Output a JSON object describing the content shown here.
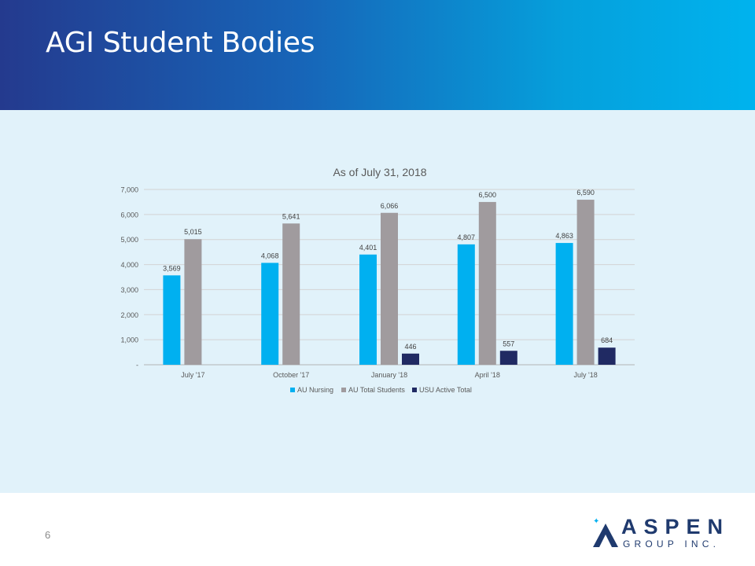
{
  "slide": {
    "title": "AGI Student Bodies",
    "page_number": "6"
  },
  "logo": {
    "word": "ASPEN",
    "sub": "GROUP INC."
  },
  "colors": {
    "header_start": "#243a8e",
    "header_end": "#00b3ee",
    "panel": "#e1f2fa",
    "au_nursing": "#00b0f0",
    "au_total": "#a09b9e",
    "usu_active": "#202a63"
  },
  "chart_data": {
    "type": "bar",
    "title": "As of July 31, 2018",
    "categories": [
      "July '17",
      "October '17",
      "January '18",
      "April '18",
      "July '18"
    ],
    "series": [
      {
        "name": "AU Nursing",
        "color": "#00b0f0",
        "values": [
          3569,
          4068,
          4401,
          4807,
          4863
        ],
        "labels": [
          "3,569",
          "4,068",
          "4,401",
          "4,807",
          "4,863"
        ]
      },
      {
        "name": "AU Total Students",
        "color": "#a09b9e",
        "values": [
          5015,
          5641,
          6066,
          6500,
          6590
        ],
        "labels": [
          "5,015",
          "5,641",
          "6,066",
          "6,500",
          "6,590"
        ]
      },
      {
        "name": "USU Active Total",
        "color": "#202a63",
        "values": [
          null,
          null,
          446,
          557,
          684
        ],
        "labels": [
          "",
          "",
          "446",
          "557",
          "684"
        ]
      }
    ],
    "ylim": [
      0,
      7000
    ],
    "yticks": [
      0,
      1000,
      2000,
      3000,
      4000,
      5000,
      6000,
      7000
    ],
    "ytick_labels": [
      "-",
      "1,000",
      "2,000",
      "3,000",
      "4,000",
      "5,000",
      "6,000",
      "7,000"
    ],
    "grid": true,
    "legend_position": "bottom"
  }
}
